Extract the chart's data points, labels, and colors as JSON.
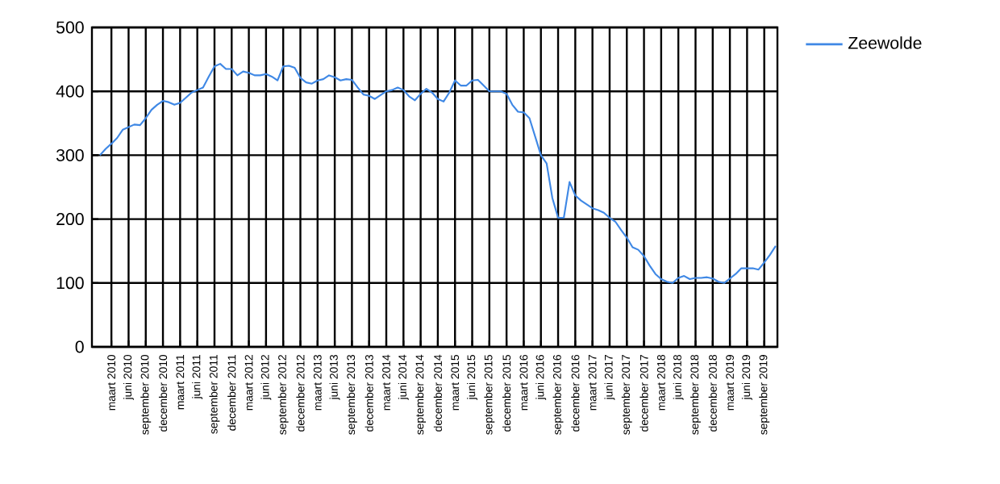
{
  "chart_data": {
    "type": "line",
    "categories": [
      null,
      null,
      "maart 2010",
      null,
      null,
      "juni 2010",
      null,
      null,
      "september 2010",
      null,
      null,
      "december 2010",
      null,
      null,
      "maart 2011",
      null,
      null,
      "juni 2011",
      null,
      null,
      "september 2011",
      null,
      null,
      "december 2011",
      null,
      null,
      "maart 2012",
      null,
      null,
      "juni 2012",
      null,
      null,
      "september 2012",
      null,
      null,
      "december 2012",
      null,
      null,
      "maart 2013",
      null,
      null,
      "juni 2013",
      null,
      null,
      "september 2013",
      null,
      null,
      "december 2013",
      null,
      null,
      "maart 2014",
      null,
      null,
      "juni 2014",
      null,
      null,
      "september 2014",
      null,
      null,
      "december 2014",
      null,
      null,
      "maart 2015",
      null,
      null,
      "juni 2015",
      null,
      null,
      "september 2015",
      null,
      null,
      "december 2015",
      null,
      null,
      "maart 2016",
      null,
      null,
      "juni 2016",
      null,
      null,
      "september 2016",
      null,
      null,
      "december 2016",
      null,
      null,
      "maart 2017",
      null,
      null,
      "juni 2017",
      null,
      null,
      "september 2017",
      null,
      null,
      "december 2017",
      null,
      null,
      "maart 2018",
      null,
      null,
      "juni 2018",
      null,
      null,
      "september 2018",
      null,
      null,
      "december 2018",
      null,
      null,
      "maart 2019",
      null,
      null,
      "juni 2019",
      null,
      null,
      "september 2019",
      null,
      null
    ],
    "series": [
      {
        "name": "Zeewolde",
        "color": "#3f88e5",
        "values": [
          300,
          310,
          318,
          327,
          340,
          344,
          348,
          347,
          358,
          371,
          379,
          385,
          383,
          379,
          382,
          390,
          398,
          402,
          406,
          423,
          439,
          443,
          435,
          435,
          425,
          431,
          429,
          425,
          425,
          427,
          423,
          417,
          439,
          440,
          437,
          421,
          414,
          412,
          417,
          419,
          425,
          422,
          417,
          419,
          418,
          406,
          395,
          393,
          388,
          394,
          400,
          402,
          406,
          402,
          392,
          386,
          396,
          404,
          398,
          388,
          384,
          398,
          417,
          409,
          409,
          417,
          418,
          409,
          400,
          400,
          400,
          396,
          379,
          368,
          367,
          358,
          329,
          300,
          287,
          233,
          202,
          202,
          258,
          237,
          229,
          223,
          217,
          214,
          210,
          202,
          196,
          183,
          171,
          156,
          152,
          142,
          127,
          114,
          106,
          102,
          100,
          108,
          111,
          106,
          108,
          108,
          109,
          107,
          102,
          100,
          107,
          114,
          123,
          123,
          123,
          121,
          132,
          144,
          158
        ]
      }
    ],
    "ylim": [
      0,
      500
    ],
    "yticks": [
      0,
      100,
      200,
      300,
      400,
      500
    ],
    "grid": true,
    "legend": "top right",
    "marker": "none",
    "line_style": "solid"
  }
}
